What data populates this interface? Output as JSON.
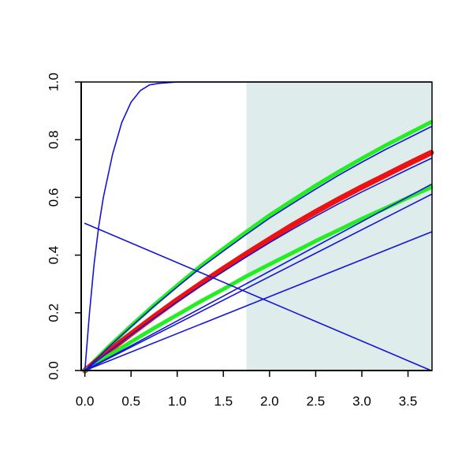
{
  "chart_data": {
    "type": "line",
    "xlim": [
      -0.04,
      3.76
    ],
    "ylim": [
      0,
      1
    ],
    "xticks": [
      {
        "value": 0,
        "label": "0.0"
      },
      0.5,
      {
        "value": 1,
        "label": "1.0"
      },
      1.5,
      {
        "value": 2,
        "label": "2.0"
      },
      2.5,
      {
        "value": 3,
        "label": "3.0"
      },
      3.5
    ],
    "yticks": [
      {
        "value": 0,
        "label": "0.0"
      },
      0.2,
      0.4,
      0.6,
      0.8,
      {
        "value": 1,
        "label": "1.0"
      }
    ],
    "span": {
      "x": [
        1.75,
        3.76
      ],
      "color": "#dfecec"
    },
    "series": [
      {
        "color": "#22ee22",
        "line_width": 5,
        "x": [
          0,
          0.25,
          0.5,
          0.75,
          1,
          1.25,
          1.5,
          1.75,
          2,
          2.25,
          2.5,
          2.75,
          3,
          3.25,
          3.5,
          3.75
        ],
        "values": [
          0,
          0.08,
          0.155,
          0.227,
          0.295,
          0.361,
          0.422,
          0.481,
          0.538,
          0.59,
          0.641,
          0.689,
          0.735,
          0.779,
          0.82,
          0.861
        ]
      },
      {
        "color": "#ee1111",
        "line_width": 7,
        "x": [
          0,
          0.25,
          0.5,
          0.75,
          1,
          1.25,
          1.5,
          1.75,
          2,
          2.25,
          2.5,
          2.75,
          3,
          3.25,
          3.5,
          3.75
        ],
        "values": [
          0,
          0.065,
          0.127,
          0.187,
          0.245,
          0.3,
          0.353,
          0.405,
          0.455,
          0.504,
          0.55,
          0.594,
          0.636,
          0.676,
          0.716,
          0.755
        ]
      },
      {
        "color": "#22ee22",
        "line_width": 5,
        "x": [
          0,
          0.25,
          0.5,
          0.75,
          1,
          1.25,
          1.5,
          1.75,
          2,
          2.25,
          2.5,
          2.75,
          3,
          3.25,
          3.5,
          3.75
        ],
        "values": [
          0,
          0.05,
          0.099,
          0.147,
          0.193,
          0.239,
          0.282,
          0.327,
          0.368,
          0.408,
          0.449,
          0.487,
          0.526,
          0.562,
          0.599,
          0.635
        ]
      },
      {
        "color": "#1515d5",
        "line_width": 1.6,
        "x": [
          0,
          0.05,
          0.1,
          0.15,
          0.2,
          0.3,
          0.4,
          0.5,
          0.6,
          0.7,
          0.8,
          1,
          1.5,
          2,
          3,
          3.75
        ],
        "values": [
          0,
          0.2,
          0.37,
          0.5,
          0.6,
          0.75,
          0.86,
          0.93,
          0.97,
          0.99,
          0.995,
          1,
          1,
          1,
          1,
          1
        ]
      },
      {
        "color": "#1515d5",
        "line_width": 1.6,
        "x": [
          0,
          0.25,
          0.5,
          0.75,
          1,
          1.25,
          1.5,
          1.75,
          2,
          2.25,
          2.5,
          2.75,
          3,
          3.25,
          3.5,
          3.75
        ],
        "values": [
          0,
          0.079,
          0.152,
          0.223,
          0.29,
          0.355,
          0.414,
          0.472,
          0.528,
          0.579,
          0.629,
          0.677,
          0.722,
          0.765,
          0.805,
          0.845
        ]
      },
      {
        "color": "#1515d5",
        "line_width": 1.6,
        "x": [
          0,
          0.25,
          0.5,
          0.75,
          1,
          1.25,
          1.5,
          1.75,
          2,
          2.25,
          2.5,
          2.75,
          3,
          3.25,
          3.5,
          3.75
        ],
        "values": [
          0,
          0.063,
          0.124,
          0.182,
          0.238,
          0.292,
          0.343,
          0.394,
          0.443,
          0.49,
          0.535,
          0.578,
          0.619,
          0.658,
          0.697,
          0.735
        ]
      },
      {
        "color": "#1515d5",
        "line_width": 1.6,
        "x": [
          0,
          3.75
        ],
        "values": [
          0,
          0.645
        ]
      },
      {
        "color": "#1515d5",
        "line_width": 1.6,
        "x": [
          0,
          3.75
        ],
        "values": [
          0,
          0.61
        ]
      },
      {
        "color": "#1515d5",
        "line_width": 1.6,
        "x": [
          0,
          3.75
        ],
        "values": [
          0,
          0.48
        ]
      },
      {
        "color": "#1515d5",
        "line_width": 1.6,
        "x": [
          0,
          3.75
        ],
        "values": [
          0.51,
          0
        ]
      }
    ]
  }
}
